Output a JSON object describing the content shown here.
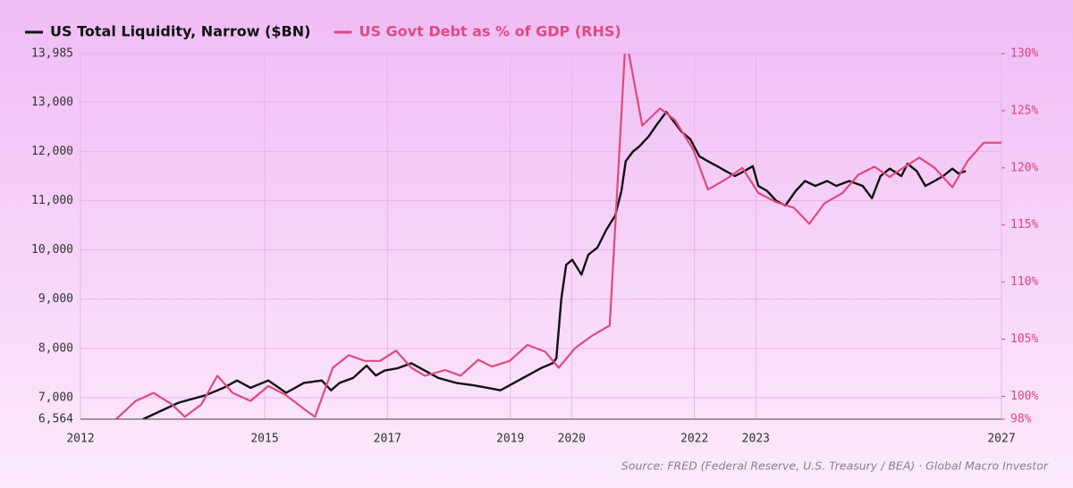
{
  "chart_data": {
    "type": "line",
    "source": "Source: FRED (Federal Reserve, U.S. Treasury / BEA) · Global Macro Investor",
    "xlim": [
      2012,
      2027
    ],
    "xticks": [
      2012,
      2015,
      2017,
      2019,
      2020,
      2022,
      2023,
      2027
    ],
    "ylim": [
      6564,
      13985
    ],
    "yticks": [
      {
        "value": 6564,
        "label": "6,564"
      },
      {
        "value": 7000,
        "label": "7,000"
      },
      {
        "value": 8000,
        "label": "8,000"
      },
      {
        "value": 9000,
        "label": "9,000"
      },
      {
        "value": 10000,
        "label": "10,000"
      },
      {
        "value": 11000,
        "label": "11,000"
      },
      {
        "value": 12000,
        "label": "12,000"
      },
      {
        "value": 13000,
        "label": "13,000"
      },
      {
        "value": 13985,
        "label": "13,985"
      }
    ],
    "y2lim": [
      98,
      130
    ],
    "y2ticks": [
      {
        "value": 98,
        "label": "98%"
      },
      {
        "value": 100,
        "label": "100%"
      },
      {
        "value": 105,
        "label": "105%"
      },
      {
        "value": 110,
        "label": "110%"
      },
      {
        "value": 115,
        "label": "115%"
      },
      {
        "value": 120,
        "label": "120%"
      },
      {
        "value": 125,
        "label": "125%"
      },
      {
        "value": 130,
        "label": "130%"
      }
    ],
    "grid": true,
    "legend": "top-left",
    "series": [
      {
        "name": "US Total Liquidity, Narrow ($BN)",
        "color": "#111111",
        "axis": "y",
        "x": [
          2013.02,
          2013.6,
          2014.04,
          2014.33,
          2014.55,
          2014.77,
          2015.06,
          2015.35,
          2015.64,
          2015.93,
          2016.08,
          2016.22,
          2016.44,
          2016.66,
          2016.81,
          2016.95,
          2017.17,
          2017.39,
          2017.61,
          2017.83,
          2018.12,
          2018.41,
          2018.63,
          2018.84,
          2019.06,
          2019.28,
          2019.5,
          2019.69,
          2019.75,
          2019.83,
          2019.91,
          2020.01,
          2020.16,
          2020.27,
          2020.42,
          2020.56,
          2020.71,
          2020.81,
          2020.88,
          2021.0,
          2021.1,
          2021.25,
          2021.39,
          2021.54,
          2021.64,
          2021.79,
          2021.93,
          2022.08,
          2022.22,
          2022.37,
          2022.51,
          2022.66,
          2022.81,
          2022.95,
          2023.04,
          2023.18,
          2023.33,
          2023.48,
          2023.65,
          2023.8,
          2023.97,
          2024.16,
          2024.31,
          2024.52,
          2024.74,
          2024.89,
          2025.03,
          2025.18,
          2025.37,
          2025.47,
          2025.62,
          2025.76,
          2025.91,
          2026.05,
          2026.2,
          2026.3,
          2026.42
        ],
        "values": [
          6564,
          6900,
          7050,
          7200,
          7350,
          7200,
          7350,
          7100,
          7300,
          7350,
          7150,
          7300,
          7400,
          7650,
          7450,
          7550,
          7600,
          7700,
          7550,
          7400,
          7300,
          7250,
          7200,
          7150,
          7300,
          7450,
          7600,
          7700,
          7800,
          9000,
          9700,
          9800,
          9500,
          9900,
          10050,
          10400,
          10700,
          11200,
          11800,
          12000,
          12100,
          12300,
          12550,
          12800,
          12650,
          12400,
          12250,
          11900,
          11800,
          11700,
          11600,
          11500,
          11600,
          11700,
          11300,
          11200,
          11000,
          10900,
          11200,
          11400,
          11300,
          11400,
          11300,
          11400,
          11300,
          11050,
          11500,
          11650,
          11500,
          11750,
          11600,
          11300,
          11400,
          11500,
          11650,
          11550,
          11600
        ]
      },
      {
        "name": "US Govt Debt as % of GDP (RHS)",
        "color": "#de4a80",
        "axis": "y2",
        "x": [
          2012.58,
          2012.9,
          2013.19,
          2013.49,
          2013.7,
          2013.97,
          2014.23,
          2014.48,
          2014.77,
          2015.06,
          2015.35,
          2015.64,
          2015.82,
          2016.11,
          2016.37,
          2016.63,
          2016.88,
          2017.14,
          2017.39,
          2017.61,
          2017.94,
          2018.19,
          2018.48,
          2018.7,
          2018.99,
          2019.28,
          2019.57,
          2019.79,
          2020.05,
          2020.33,
          2020.62,
          2020.88,
          2021.15,
          2021.44,
          2021.68,
          2021.98,
          2022.22,
          2022.51,
          2022.78,
          2023.04,
          2023.33,
          2023.62,
          2023.87,
          2024.12,
          2024.41,
          2024.67,
          2024.93,
          2025.18,
          2025.4,
          2025.66,
          2025.91,
          2026.2,
          2026.45,
          2026.71,
          2027.0
        ],
        "values": [
          98.0,
          99.6,
          100.3,
          99.3,
          98.2,
          99.3,
          101.8,
          100.3,
          99.6,
          100.9,
          100.1,
          98.9,
          98.2,
          102.5,
          103.6,
          103.1,
          103.1,
          104.0,
          102.5,
          101.8,
          102.3,
          101.8,
          103.2,
          102.6,
          103.1,
          104.5,
          103.9,
          102.5,
          104.2,
          105.3,
          106.2,
          131.5,
          123.7,
          125.2,
          124.2,
          121.6,
          118.1,
          119.0,
          120.0,
          117.8,
          117.0,
          116.5,
          115.1,
          116.9,
          117.8,
          119.4,
          120.1,
          119.2,
          120.0,
          120.9,
          120.0,
          118.3,
          120.6,
          122.2,
          122.2
        ]
      }
    ]
  }
}
